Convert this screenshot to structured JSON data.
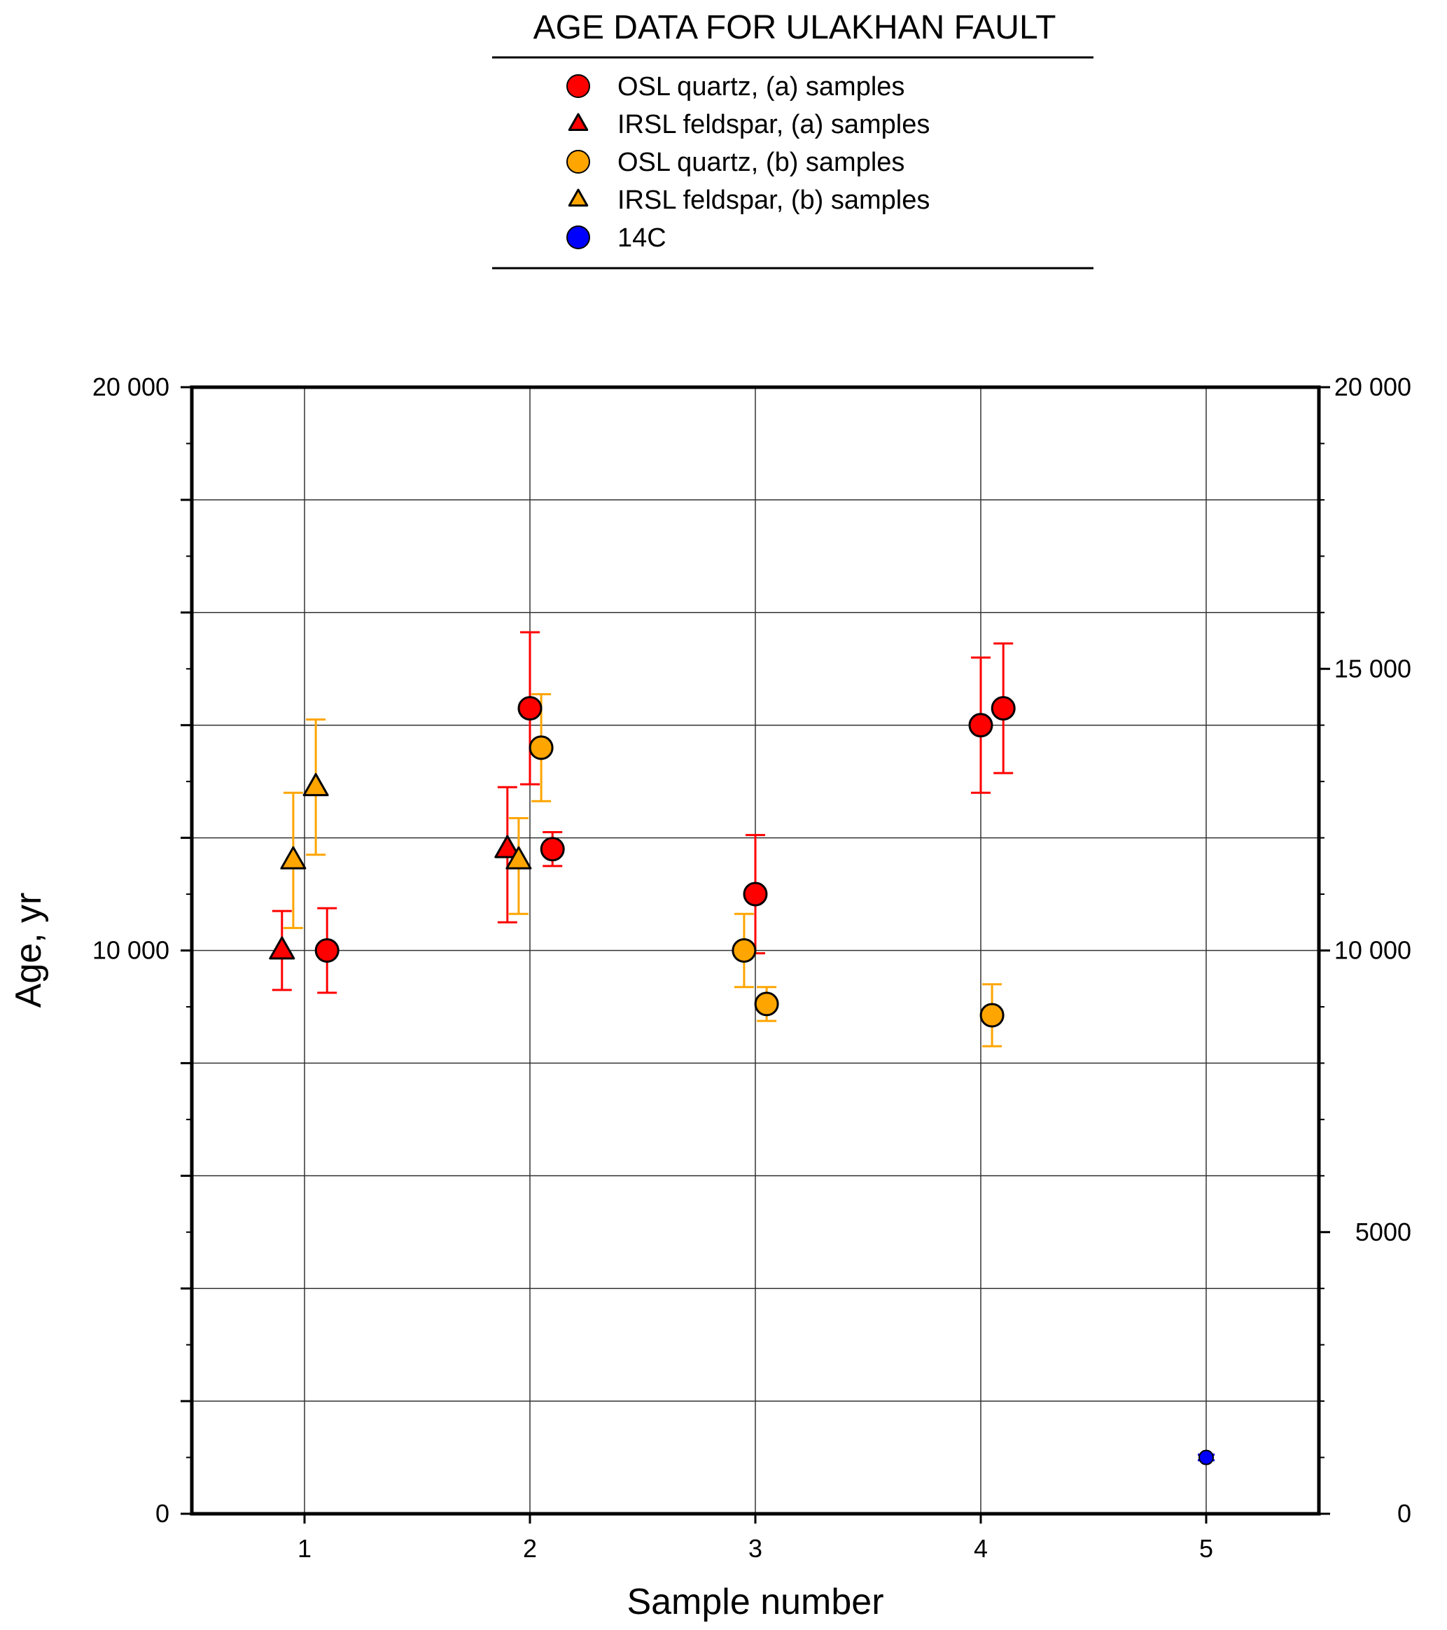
{
  "chart_data": {
    "type": "scatter",
    "title": "AGE DATA FOR ULAKHAN FAULT",
    "xlabel": "Sample number",
    "ylabel": "Age, yr",
    "xlim": [
      0.5,
      5.5
    ],
    "ylim": [
      0,
      20000
    ],
    "x_ticks": [
      1,
      2,
      3,
      4,
      5
    ],
    "x_tick_labels": [
      "1",
      "2",
      "3",
      "4",
      "5"
    ],
    "y_ticks_left": [
      0,
      10000,
      20000
    ],
    "y_tick_labels_left": [
      "0",
      "10 000",
      "20 000"
    ],
    "y_ticks_right": [
      0,
      5000,
      10000,
      15000,
      20000
    ],
    "y_tick_labels_right": [
      "0",
      "5000",
      "10 000",
      "15 000",
      "20 000"
    ],
    "y_gridlines": [
      2000,
      4000,
      6000,
      8000,
      10000,
      12000,
      14000,
      16000,
      18000
    ],
    "y_minor_ticks": [
      1000,
      3000,
      5000,
      7000,
      9000,
      11000,
      13000,
      15000,
      17000,
      19000
    ],
    "grid": true,
    "legend_position": "top-center",
    "series": [
      {
        "name": "OSL quartz, (a) samples",
        "marker": "circle",
        "color": "#ff0000",
        "points": [
          {
            "x": 1.1,
            "y": 10000,
            "low": 9250,
            "high": 10750
          },
          {
            "x": 2.0,
            "y": 14300,
            "low": 12950,
            "high": 15650
          },
          {
            "x": 2.1,
            "y": 11800,
            "low": 11500,
            "high": 12100
          },
          {
            "x": 3.0,
            "y": 11000,
            "low": 9950,
            "high": 12050
          },
          {
            "x": 4.0,
            "y": 14000,
            "low": 12800,
            "high": 15200
          },
          {
            "x": 4.1,
            "y": 14300,
            "low": 13150,
            "high": 15450
          }
        ]
      },
      {
        "name": "IRSL feldspar, (a) samples",
        "marker": "triangle",
        "color": "#ff0000",
        "points": [
          {
            "x": 0.9,
            "y": 10000,
            "low": 9300,
            "high": 10700
          },
          {
            "x": 1.9,
            "y": 11800,
            "low": 10500,
            "high": 12900
          }
        ]
      },
      {
        "name": "OSL quartz, (b) samples",
        "marker": "circle",
        "color": "#ffa500",
        "points": [
          {
            "x": 2.05,
            "y": 13600,
            "low": 12650,
            "high": 14550
          },
          {
            "x": 2.95,
            "y": 10000,
            "low": 9350,
            "high": 10650
          },
          {
            "x": 3.05,
            "y": 9050,
            "low": 8750,
            "high": 9350
          },
          {
            "x": 4.05,
            "y": 8850,
            "low": 8300,
            "high": 9400
          }
        ]
      },
      {
        "name": "IRSL feldspar, (b) samples",
        "marker": "triangle",
        "color": "#ffa500",
        "points": [
          {
            "x": 0.95,
            "y": 11600,
            "low": 10400,
            "high": 12800
          },
          {
            "x": 1.05,
            "y": 12900,
            "low": 11700,
            "high": 14100
          },
          {
            "x": 1.95,
            "y": 11600,
            "low": 10650,
            "high": 12350
          }
        ]
      },
      {
        "name": "14C",
        "marker": "circle-small",
        "color": "#0000ff",
        "points": [
          {
            "x": 5.0,
            "y": 1000,
            "low": 950,
            "high": 1050
          }
        ]
      }
    ]
  }
}
